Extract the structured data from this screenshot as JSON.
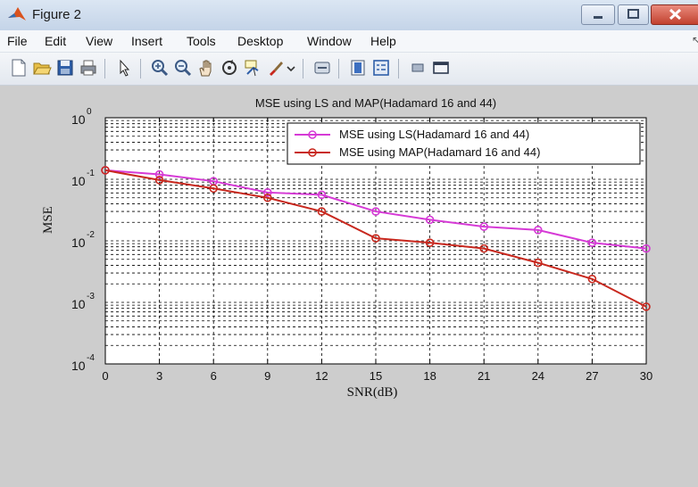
{
  "window": {
    "title": "Figure 2",
    "menus": [
      "File",
      "Edit",
      "View",
      "Insert",
      "Tools",
      "Desktop",
      "Window",
      "Help"
    ],
    "menu_extra": "↖",
    "toolbar_icons": [
      "new-figure-icon",
      "open-file-icon",
      "save-icon",
      "print-icon",
      "pointer-icon",
      "zoom-in-icon",
      "zoom-out-icon",
      "pan-icon",
      "rotate-icon",
      "data-cursor-icon",
      "brush-icon",
      "link-icon",
      "colorbar-icon",
      "legend-icon",
      "hide-tools-icon",
      "show-tools-icon"
    ],
    "colors": {
      "figure_bg": "#cdcdcd",
      "axes_bg": "#ffffff"
    }
  },
  "chart_data": {
    "type": "line",
    "title": "MSE using LS and MAP(Hadamard 16 and 44)",
    "xlabel": "SNR(dB)",
    "ylabel": "MSE",
    "xlim": [
      0,
      30
    ],
    "ylim": [
      0.0001,
      1
    ],
    "yscale": "log",
    "grid": true,
    "x_ticks": [
      "0",
      "3",
      "6",
      "9",
      "12",
      "15",
      "18",
      "21",
      "24",
      "27",
      "30"
    ],
    "y_ticks": [
      {
        "base": "10",
        "exp": "-4"
      },
      {
        "base": "10",
        "exp": "-3"
      },
      {
        "base": "10",
        "exp": "-2"
      },
      {
        "base": "10",
        "exp": "-1"
      },
      {
        "base": "10",
        "exp": "0"
      }
    ],
    "legend_position": "top-right",
    "series": [
      {
        "name": "MSE using LS(Hadamard 16 and 44)",
        "color": "#d63ad6",
        "marker": "circle",
        "x": [
          0,
          3,
          6,
          9,
          12,
          15,
          18,
          21,
          24,
          27,
          30
        ],
        "y": [
          0.14,
          0.12,
          0.093,
          0.061,
          0.056,
          0.03,
          0.022,
          0.017,
          0.015,
          0.0093,
          0.0075
        ]
      },
      {
        "name": "MSE using MAP(Hadamard 16 and 44)",
        "color": "#c8281e",
        "marker": "circle",
        "x": [
          0,
          3,
          6,
          9,
          12,
          15,
          18,
          21,
          24,
          27,
          30
        ],
        "y": [
          0.14,
          0.097,
          0.071,
          0.05,
          0.03,
          0.011,
          0.0093,
          0.0075,
          0.0044,
          0.0024,
          0.00085
        ]
      }
    ]
  }
}
